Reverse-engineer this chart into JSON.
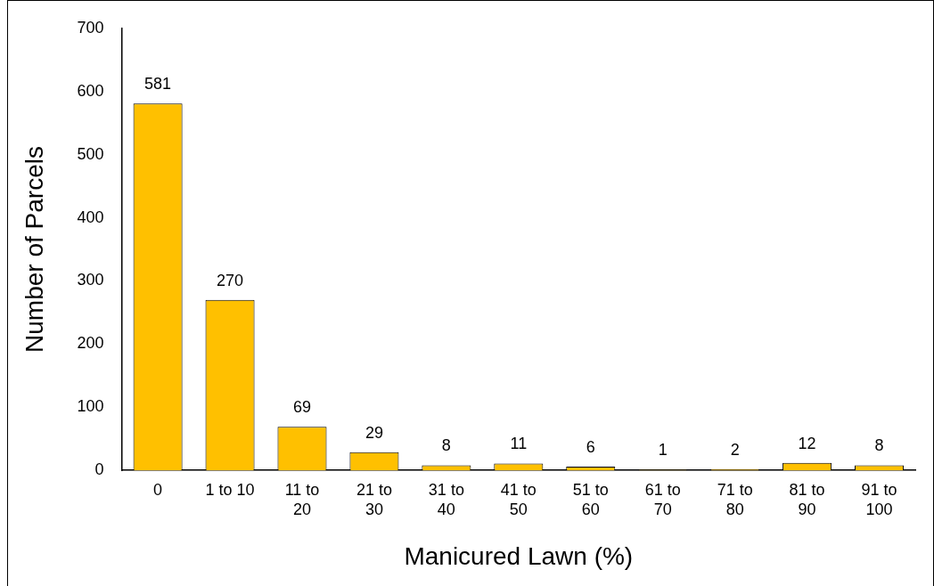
{
  "chart_data": {
    "type": "bar",
    "xlabel": "Manicured Lawn (%)",
    "ylabel": "Number of Parcels",
    "categories": [
      "0",
      "1 to 10",
      "11 to 20",
      "21 to 30",
      "31 to 40",
      "41 to 50",
      "51 to 60",
      "61 to 70",
      "71 to 80",
      "81 to 90",
      "91 to 100"
    ],
    "values": [
      581,
      270,
      69,
      29,
      8,
      11,
      6,
      1,
      2,
      12,
      8
    ],
    "color": "#ffc000",
    "ylim": [
      0,
      700
    ],
    "yticks": [
      0,
      100,
      200,
      300,
      400,
      500,
      600,
      700
    ],
    "grid": false,
    "legend": false,
    "data_labels": true
  }
}
